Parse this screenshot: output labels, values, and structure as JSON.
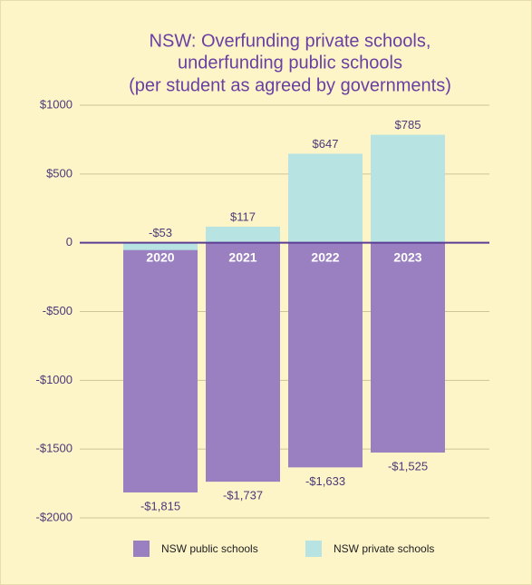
{
  "chart_data": {
    "type": "bar",
    "title": [
      "NSW: Overfunding private schools,",
      "underfunding public schools",
      "(per student as agreed by governments)"
    ],
    "categories": [
      "2020",
      "2021",
      "2022",
      "2023"
    ],
    "series": [
      {
        "name": "NSW public schools",
        "color": "#9a80c0",
        "values": [
          -1815,
          -1737,
          -1633,
          -1525
        ],
        "value_labels": [
          "-$1,815",
          "-$1,737",
          "-$1,633",
          "-$1,525"
        ]
      },
      {
        "name": "NSW private schools",
        "color": "#b7e3e2",
        "values": [
          -53,
          117,
          647,
          785
        ],
        "value_labels": [
          "-$53",
          "$117",
          "$647",
          "$785"
        ]
      }
    ],
    "ylim": [
      -2000,
      1000
    ],
    "yticks": [
      {
        "value": 1000,
        "label": "$1000"
      },
      {
        "value": 500,
        "label": "$500"
      },
      0,
      {
        "value": -500,
        "label": "-$500"
      },
      {
        "value": -1000,
        "label": "-$1000"
      },
      {
        "value": -1500,
        "label": "-$1500"
      },
      {
        "value": -2000,
        "label": "-$2000"
      }
    ],
    "grid": true
  }
}
